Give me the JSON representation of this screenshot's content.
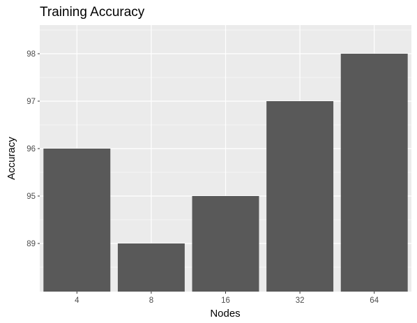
{
  "chart_data": {
    "type": "bar",
    "title": "Training Accuracy",
    "xlabel": "Nodes",
    "ylabel": "Accuracy",
    "categories": [
      "4",
      "8",
      "16",
      "32",
      "64"
    ],
    "values": [
      96,
      89,
      95,
      97,
      98
    ],
    "y_tick_labels": [
      "98",
      "97",
      "96",
      "95",
      "89"
    ],
    "colors": {
      "panel_background": "#ebebeb",
      "grid": "#ffffff",
      "bar_fill": "#595959"
    },
    "grid": true,
    "legend": "none"
  }
}
